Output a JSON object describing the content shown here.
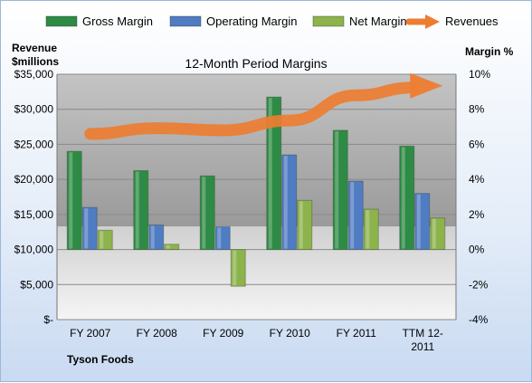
{
  "chart_data": {
    "type": "bar",
    "title": "12-Month Period Margins",
    "left_axis_label_line1": "Revenue",
    "left_axis_label_line2": "$millions",
    "right_axis_label": "Margin %",
    "company": "Tyson Foods",
    "categories": [
      [
        "FY 2007"
      ],
      [
        "FY 2008"
      ],
      [
        "FY 2009"
      ],
      [
        "FY 2010"
      ],
      [
        "FY 2011"
      ],
      [
        "TTM 12-",
        "2011"
      ]
    ],
    "left_ticks": [
      "$-",
      "$5,000",
      "$10,000",
      "$15,000",
      "$20,000",
      "$25,000",
      "$30,000",
      "$35,000"
    ],
    "right_ticks": [
      "-4%",
      "-2%",
      "0%",
      "2%",
      "4%",
      "6%",
      "8%",
      "10%"
    ],
    "ylim_left": [
      0,
      35000
    ],
    "ylim_right": [
      -4,
      10
    ],
    "legend_position": "top",
    "series": [
      {
        "name": "Gross Margin",
        "color": "#2e8b45",
        "axis": "right",
        "values": [
          5.6,
          4.5,
          4.2,
          8.7,
          6.8,
          5.9
        ]
      },
      {
        "name": "Operating Margin",
        "color": "#4f7cc2",
        "axis": "right",
        "values": [
          2.4,
          1.4,
          1.3,
          5.4,
          3.9,
          3.2
        ]
      },
      {
        "name": "Net Margin",
        "color": "#8db34c",
        "axis": "right",
        "values": [
          1.1,
          0.3,
          -2.1,
          2.8,
          2.3,
          1.8
        ]
      }
    ],
    "revenue_series": {
      "name": "Revenues",
      "color": "#ed7d31",
      "axis": "left",
      "values": [
        26500,
        27300,
        27000,
        28400,
        32000,
        33100
      ]
    }
  }
}
